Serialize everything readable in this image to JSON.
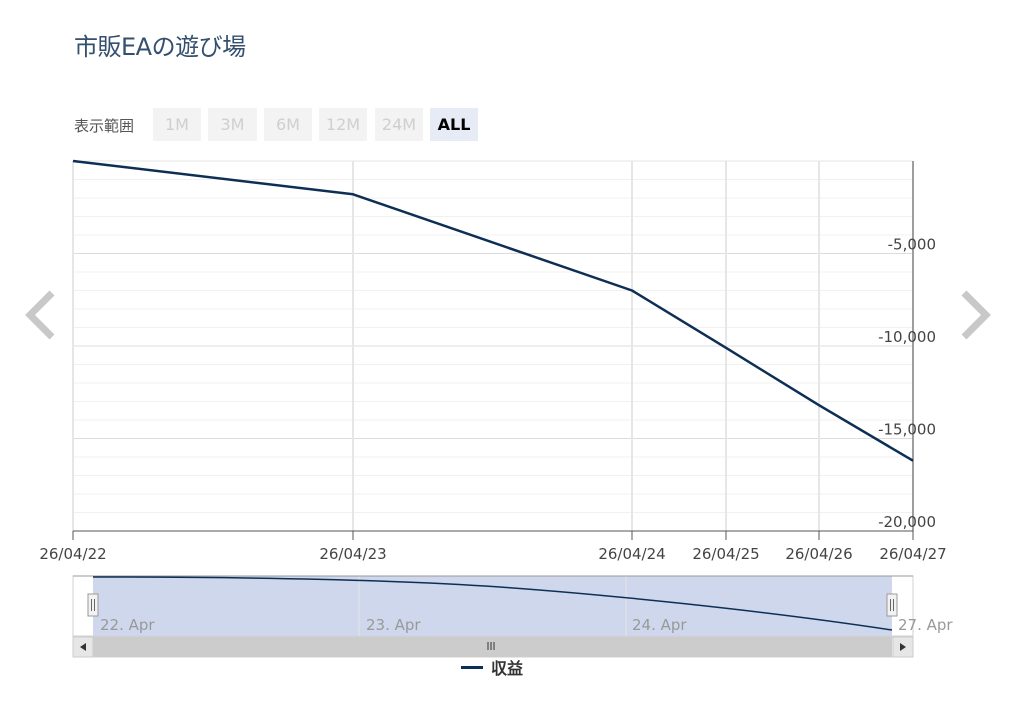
{
  "title": "市販EAの遊び場",
  "range_selector": {
    "label": "表示範囲",
    "buttons": [
      "1M",
      "3M",
      "6M",
      "12M",
      "24M",
      "ALL"
    ],
    "selected": "ALL"
  },
  "colors": {
    "series": "#0e2f55",
    "navigator_fill": "#c9d3ea",
    "grid": "#e6e6e6"
  },
  "icons": {
    "prev": "chevron-left-icon",
    "next": "chevron-right-icon"
  },
  "chart_data": {
    "type": "line",
    "series": [
      {
        "name": "収益",
        "points": [
          {
            "x": "26/04/22",
            "y": 0
          },
          {
            "x": "26/04/23",
            "y": -1800
          },
          {
            "x": "26/04/24",
            "y": -7000
          },
          {
            "x": "26/04/25",
            "y": -10100
          },
          {
            "x": "26/04/26",
            "y": -13200
          },
          {
            "x": "26/04/27",
            "y": -16200
          }
        ]
      }
    ],
    "x_tick_labels": [
      "26/04/22",
      "26/04/23",
      "26/04/24",
      "26/04/25",
      "26/04/26",
      "26/04/27"
    ],
    "y_tick_labels": [
      "-5,000",
      "-10,000",
      "-15,000",
      "-20,000"
    ],
    "y_ticks": [
      -5000,
      -10000,
      -15000,
      -20000
    ],
    "ylim": [
      -20000,
      0
    ],
    "navigator": {
      "labels": [
        "22. Apr",
        "23. Apr",
        "24. Apr",
        "27. Apr"
      ]
    },
    "legend": "bottom-center",
    "grid": true
  }
}
